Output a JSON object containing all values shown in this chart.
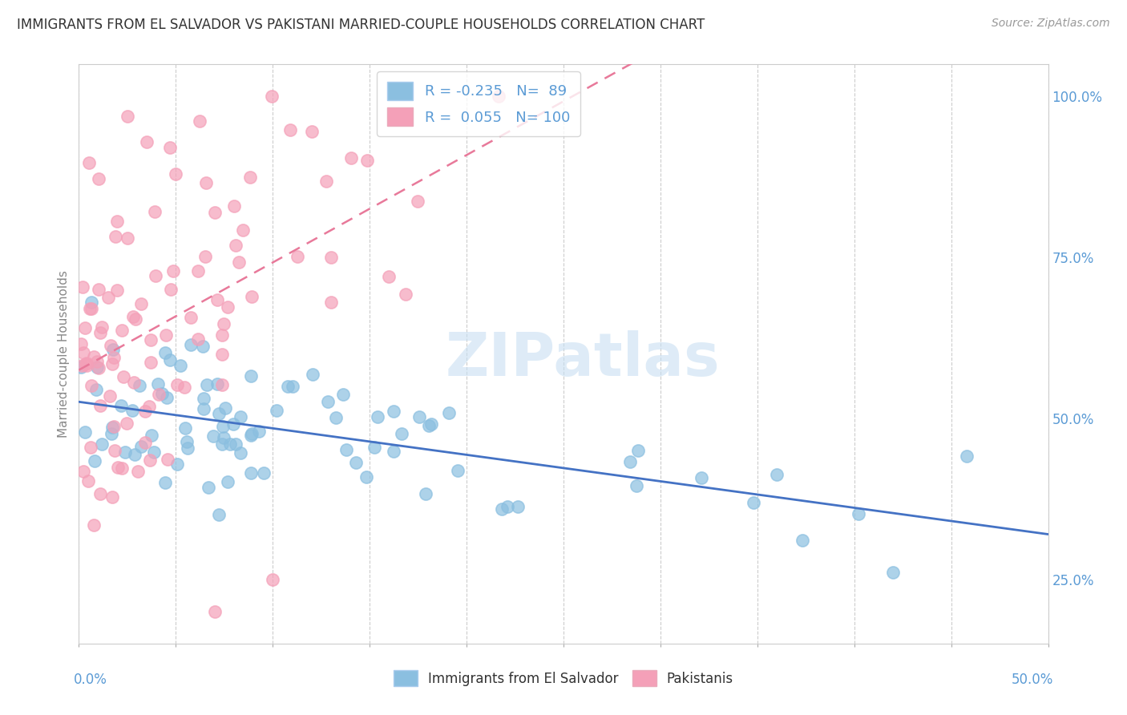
{
  "title": "IMMIGRANTS FROM EL SALVADOR VS PAKISTANI MARRIED-COUPLE HOUSEHOLDS CORRELATION CHART",
  "source": "Source: ZipAtlas.com",
  "legend_label1": "Immigrants from El Salvador",
  "legend_label2": "Pakistanis",
  "R1": -0.235,
  "N1": 89,
  "R2": 0.055,
  "N2": 100,
  "xlim": [
    0.0,
    0.5
  ],
  "ylim": [
    0.15,
    1.05
  ],
  "yticks": [
    0.25,
    0.5,
    0.75,
    1.0
  ],
  "ytick_labels": [
    "25.0%",
    "50.0%",
    "75.0%",
    "100.0%"
  ],
  "color_blue": "#8BBFE0",
  "color_pink": "#F4A0B8",
  "color_blue_line": "#4472C4",
  "color_pink_line": "#E8799A",
  "watermark": "ZIPatlas",
  "background_color": "#FFFFFF",
  "grid_color": "#CCCCCC",
  "title_color": "#333333",
  "axis_label_color": "#5B9BD5",
  "ylabel": "Married-couple Households"
}
